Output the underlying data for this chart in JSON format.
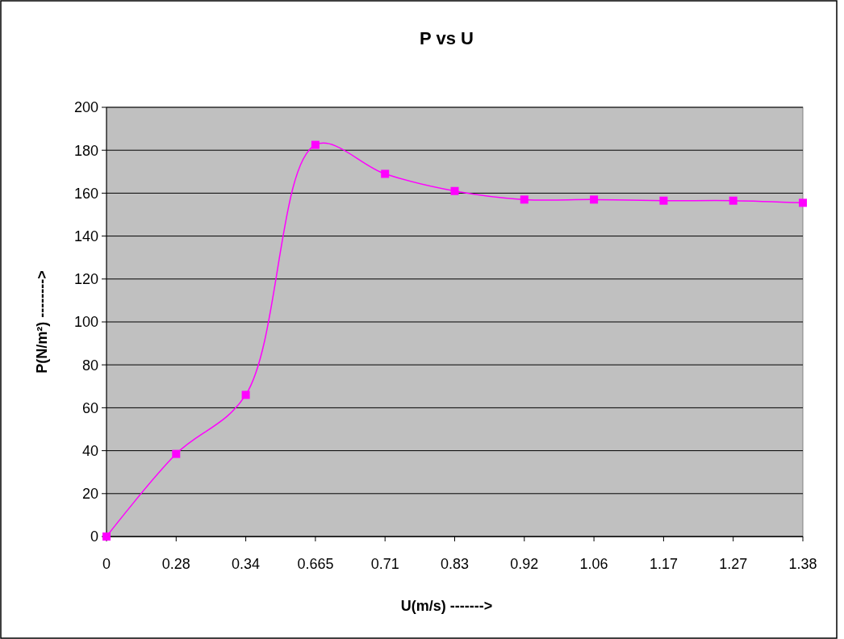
{
  "chart_data": {
    "type": "line",
    "title": "P vs U",
    "xlabel": "U(m/s) ------->",
    "ylabel": "P(N/m²) -------->",
    "categories": [
      "0",
      "0.28",
      "0.34",
      "0.665",
      "0.71",
      "0.83",
      "0.92",
      "1.06",
      "1.17",
      "1.27",
      "1.38"
    ],
    "series": [
      {
        "color": "#ff00ff",
        "values": [
          0,
          38.5,
          66,
          182.5,
          169,
          161,
          157,
          157,
          156.5,
          156.5,
          155.5
        ]
      }
    ],
    "ylim": [
      0,
      200
    ],
    "yticks": [
      0,
      20,
      40,
      60,
      80,
      100,
      120,
      140,
      160,
      180,
      200
    ],
    "grid": "y",
    "marker": "square",
    "line_style": "solid"
  }
}
